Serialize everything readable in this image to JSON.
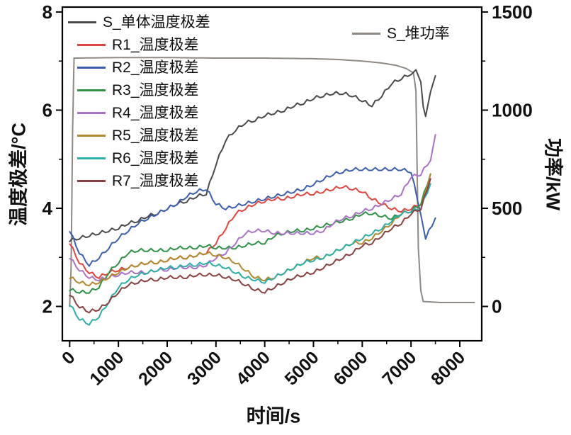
{
  "chart_data": {
    "type": "line",
    "title": "",
    "xlabel": "时间/s",
    "ylabel_left": "温度极差/°C",
    "ylabel_right": "功率/kW",
    "grid": false,
    "legend_position": "inside-top-left and inside-top-right",
    "x_range": [
      -150,
      8450
    ],
    "y_left_range": [
      1.3,
      8.1
    ],
    "y_right_range": [
      -175,
      1525
    ],
    "x_ticks": [
      0,
      1000,
      2000,
      3000,
      4000,
      5000,
      6000,
      7000,
      8000
    ],
    "x_minor_ticks": [
      500,
      1500,
      2500,
      3500,
      4500,
      5500,
      6500,
      7500
    ],
    "y_left_ticks": [
      2,
      4,
      6,
      8
    ],
    "y_left_minor_ticks": [
      3,
      5,
      7
    ],
    "y_right_ticks": [
      0,
      500,
      1000,
      1500
    ],
    "y_right_minor_ticks": [
      250,
      750,
      1250
    ],
    "legend": {
      "items": [
        {
          "label": "S_单体温度极差",
          "color": "#4a4a4a"
        },
        {
          "label": "R1_温度极差",
          "color": "#e0463e"
        },
        {
          "label": "R2_温度极差",
          "color": "#3a5fae"
        },
        {
          "label": "R3_温度极差",
          "color": "#2e9145"
        },
        {
          "label": "R4_温度极差",
          "color": "#a972c5"
        },
        {
          "label": "R5_温度极差",
          "color": "#b2882c"
        },
        {
          "label": "R6_温度极差",
          "color": "#2cafa7"
        },
        {
          "label": "R7_温度极差",
          "color": "#8a4040"
        }
      ],
      "power_item": {
        "label": "S_堆功率",
        "color": "#8f8984"
      }
    },
    "series": [
      {
        "name": "S_堆功率",
        "axis": "right",
        "color": "#8f8984",
        "x": [
          0,
          30,
          60,
          90,
          1000,
          2000,
          3000,
          4000,
          5000,
          5500,
          6000,
          6400,
          6700,
          6900,
          7050,
          7100,
          7150,
          7200,
          7250,
          7600,
          8300
        ],
        "y": [
          0,
          200,
          900,
          1265,
          1268,
          1268,
          1265,
          1265,
          1262,
          1258,
          1250,
          1240,
          1228,
          1212,
          1190,
          1100,
          300,
          80,
          25,
          20,
          20
        ]
      },
      {
        "name": "S_单体温度极差",
        "axis": "left",
        "color": "#4a4a4a",
        "x": [
          0,
          200,
          400,
          600,
          800,
          1000,
          1200,
          1400,
          1600,
          1800,
          2000,
          2200,
          2400,
          2600,
          2800,
          3000,
          3200,
          3400,
          3600,
          3800,
          4000,
          4200,
          4400,
          4600,
          4800,
          5000,
          5200,
          5400,
          5600,
          5800,
          6000,
          6200,
          6400,
          6600,
          6800,
          7000,
          7100,
          7200,
          7250,
          7300,
          7400,
          7500
        ],
        "y": [
          3.35,
          3.4,
          3.45,
          3.5,
          3.55,
          3.6,
          3.7,
          3.75,
          3.85,
          3.9,
          4.0,
          4.1,
          4.15,
          4.25,
          4.3,
          4.9,
          5.4,
          5.6,
          5.75,
          5.8,
          5.9,
          5.95,
          6.0,
          6.1,
          6.15,
          6.25,
          6.3,
          6.35,
          6.35,
          6.3,
          6.2,
          6.1,
          6.3,
          6.55,
          6.65,
          6.75,
          6.85,
          6.6,
          6.1,
          5.9,
          6.4,
          6.7
        ]
      },
      {
        "name": "R1_温度极差",
        "axis": "left",
        "color": "#e0463e",
        "x": [
          0,
          200,
          400,
          600,
          800,
          1000,
          1200,
          1400,
          1600,
          1800,
          2000,
          2200,
          2400,
          2600,
          2800,
          3000,
          3200,
          3400,
          3600,
          3800,
          4000,
          4200,
          4400,
          4600,
          4800,
          5000,
          5200,
          5400,
          5600,
          5800,
          6000,
          6200,
          6400,
          6600,
          6800,
          7000,
          7200,
          7400
        ],
        "y": [
          3.3,
          2.9,
          2.7,
          2.6,
          2.7,
          2.75,
          2.8,
          2.85,
          2.9,
          2.9,
          2.95,
          3.0,
          3.0,
          3.05,
          3.1,
          3.3,
          3.6,
          3.9,
          4.0,
          4.1,
          4.15,
          4.2,
          4.2,
          4.25,
          4.3,
          4.3,
          4.35,
          4.4,
          4.45,
          4.4,
          4.35,
          4.2,
          4.1,
          4.0,
          3.95,
          4.0,
          4.1,
          4.6
        ]
      },
      {
        "name": "R2_温度极差",
        "axis": "left",
        "color": "#3a5fae",
        "x": [
          0,
          200,
          400,
          600,
          800,
          1000,
          1200,
          1400,
          1600,
          1800,
          2000,
          2200,
          2400,
          2600,
          2800,
          3000,
          3200,
          3400,
          3600,
          3800,
          4000,
          4200,
          4400,
          4600,
          4800,
          5000,
          5200,
          5400,
          5600,
          5800,
          6000,
          6200,
          6400,
          6600,
          6800,
          7000,
          7200,
          7300,
          7500
        ],
        "y": [
          3.55,
          3.1,
          2.85,
          3.0,
          3.2,
          3.4,
          3.55,
          3.7,
          3.8,
          3.9,
          4.0,
          4.1,
          4.25,
          4.35,
          4.4,
          4.1,
          4.0,
          4.05,
          4.1,
          4.15,
          4.2,
          4.25,
          4.3,
          4.35,
          4.4,
          4.5,
          4.6,
          4.7,
          4.75,
          4.8,
          4.8,
          4.8,
          4.8,
          4.8,
          4.8,
          4.75,
          3.9,
          3.4,
          3.8
        ]
      },
      {
        "name": "R3_温度极差",
        "axis": "left",
        "color": "#2e9145",
        "x": [
          0,
          200,
          400,
          600,
          800,
          1000,
          1200,
          1400,
          1600,
          1800,
          2000,
          2200,
          2400,
          2600,
          2800,
          3000,
          3200,
          3400,
          3600,
          3800,
          4000,
          4200,
          4400,
          4600,
          4800,
          5000,
          5200,
          5400,
          5600,
          5800,
          6000,
          6200,
          6400,
          6600,
          6800,
          7000,
          7200,
          7400
        ],
        "y": [
          2.35,
          2.3,
          2.3,
          2.4,
          2.7,
          2.9,
          3.1,
          3.15,
          3.15,
          3.15,
          3.15,
          3.2,
          3.2,
          3.2,
          3.25,
          3.2,
          3.2,
          3.2,
          3.25,
          3.3,
          3.3,
          3.45,
          3.5,
          3.55,
          3.55,
          3.6,
          3.65,
          3.7,
          3.75,
          3.8,
          3.9,
          3.9,
          3.85,
          3.8,
          3.9,
          3.95,
          4.1,
          4.7
        ]
      },
      {
        "name": "R4_温度极差",
        "axis": "left",
        "color": "#a972c5",
        "x": [
          0,
          200,
          400,
          600,
          800,
          1000,
          1200,
          1400,
          1600,
          1800,
          2000,
          2200,
          2400,
          2600,
          2800,
          3000,
          3200,
          3400,
          3600,
          3800,
          4000,
          4200,
          4400,
          4600,
          4800,
          5000,
          5200,
          5400,
          5600,
          5800,
          6000,
          6200,
          6400,
          6600,
          6800,
          7000,
          7200,
          7400,
          7500
        ],
        "y": [
          3.0,
          2.75,
          2.6,
          2.55,
          2.6,
          2.65,
          2.7,
          2.7,
          2.7,
          2.75,
          2.75,
          2.8,
          2.8,
          2.8,
          2.85,
          3.0,
          3.1,
          3.3,
          3.5,
          3.55,
          3.55,
          3.5,
          3.5,
          3.5,
          3.5,
          3.5,
          3.55,
          3.7,
          3.8,
          3.85,
          3.95,
          4.0,
          4.1,
          4.2,
          4.3,
          4.65,
          4.7,
          5.0,
          5.5
        ]
      },
      {
        "name": "R5_温度极差",
        "axis": "left",
        "color": "#b2882c",
        "x": [
          0,
          200,
          400,
          600,
          800,
          1000,
          1200,
          1400,
          1600,
          1800,
          2000,
          2200,
          2400,
          2600,
          2800,
          3000,
          3200,
          3400,
          3600,
          3800,
          4000,
          4200,
          4400,
          4600,
          4800,
          5000,
          5200,
          5400,
          5600,
          5800,
          6000,
          6200,
          6400,
          6600,
          6800,
          7000,
          7200,
          7400
        ],
        "y": [
          2.6,
          2.5,
          2.45,
          2.5,
          2.6,
          2.7,
          2.8,
          2.85,
          2.9,
          2.9,
          2.95,
          3.0,
          3.0,
          3.05,
          3.1,
          3.05,
          3.0,
          2.9,
          2.75,
          2.6,
          2.55,
          2.6,
          2.7,
          2.8,
          2.9,
          3.0,
          3.0,
          3.1,
          3.2,
          3.3,
          3.3,
          3.4,
          3.55,
          3.7,
          3.9,
          3.95,
          4.0,
          4.7
        ]
      },
      {
        "name": "R6_温度极差",
        "axis": "left",
        "color": "#2cafa7",
        "x": [
          0,
          200,
          400,
          600,
          800,
          1000,
          1200,
          1400,
          1600,
          1800,
          2000,
          2200,
          2400,
          2600,
          2800,
          3000,
          3200,
          3400,
          3600,
          3800,
          4000,
          4200,
          4400,
          4600,
          4800,
          5000,
          5200,
          5400,
          5600,
          5800,
          6000,
          6200,
          6400,
          6600,
          6800,
          7000,
          7200,
          7400
        ],
        "y": [
          2.05,
          1.75,
          1.65,
          1.8,
          2.1,
          2.4,
          2.55,
          2.65,
          2.7,
          2.75,
          2.8,
          2.8,
          2.85,
          2.85,
          2.9,
          2.85,
          2.8,
          2.7,
          2.6,
          2.55,
          2.5,
          2.6,
          2.7,
          2.8,
          2.9,
          2.95,
          3.0,
          3.1,
          3.2,
          3.3,
          3.4,
          3.5,
          3.6,
          3.75,
          3.9,
          3.95,
          4.0,
          4.5
        ]
      },
      {
        "name": "R7_温度极差",
        "axis": "left",
        "color": "#8a4040",
        "x": [
          0,
          200,
          400,
          600,
          800,
          1000,
          1200,
          1400,
          1600,
          1800,
          2000,
          2200,
          2400,
          2600,
          2800,
          3000,
          3200,
          3400,
          3600,
          3800,
          4000,
          4200,
          4400,
          4600,
          4800,
          5000,
          5200,
          5400,
          5600,
          5800,
          6000,
          6200,
          6400,
          6600,
          6800,
          7000,
          7200,
          7400
        ],
        "y": [
          2.25,
          2.0,
          1.9,
          1.95,
          2.1,
          2.3,
          2.45,
          2.5,
          2.55,
          2.55,
          2.6,
          2.6,
          2.6,
          2.65,
          2.65,
          2.65,
          2.6,
          2.55,
          2.45,
          2.35,
          2.3,
          2.4,
          2.5,
          2.6,
          2.65,
          2.7,
          2.8,
          2.9,
          3.0,
          3.1,
          3.25,
          3.3,
          3.45,
          3.6,
          3.7,
          3.9,
          4.0,
          4.6
        ]
      }
    ]
  }
}
